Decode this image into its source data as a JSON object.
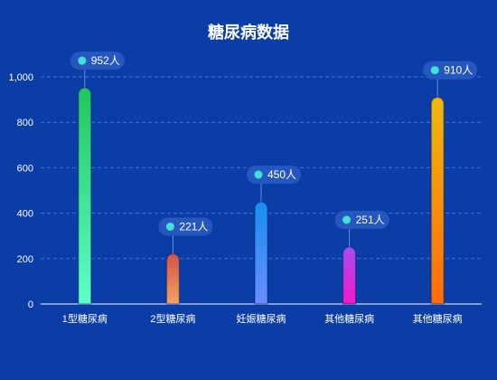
{
  "chart_data": {
    "type": "bar",
    "title": "糖尿病数据",
    "categories": [
      "1型糖尿病",
      "2型糖尿病",
      "妊娠糖尿病",
      "其他糖尿病",
      "其他糖尿病"
    ],
    "values": [
      952,
      221,
      450,
      251,
      910
    ],
    "value_labels": [
      "952人",
      "221人",
      "450人",
      "251人",
      "910人"
    ],
    "ylim": [
      0,
      1000
    ],
    "yticks": [
      0,
      200,
      400,
      600,
      800,
      1000
    ],
    "ytick_labels": [
      "0",
      "200",
      "400",
      "600",
      "800",
      "1,000"
    ],
    "grid": true,
    "bar_gradients": [
      [
        "#22c55e",
        "#5effc8"
      ],
      [
        "#d1524a",
        "#f7a25f"
      ],
      [
        "#1590f0",
        "#6b8cff"
      ],
      [
        "#a34ef0",
        "#f816c8"
      ],
      [
        "#efb80b",
        "#ff6b0a"
      ]
    ],
    "colors": {
      "background": "#0a3ea6",
      "grid": "#3d75d6",
      "axis": "#ffffff",
      "tooltip_bg": "#2657bf",
      "tooltip_dot": "#3fe0d6"
    }
  }
}
